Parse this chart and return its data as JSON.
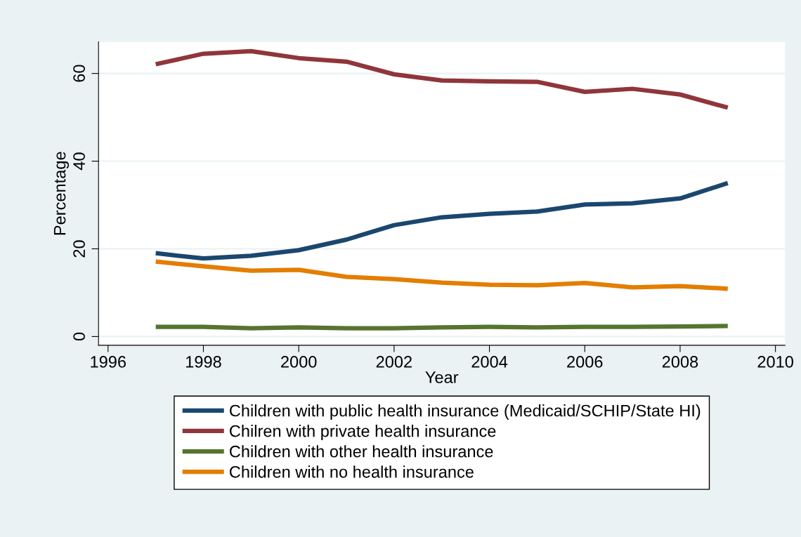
{
  "chart_data": {
    "type": "line",
    "xlabel": "Year",
    "ylabel": "Percentage",
    "x": [
      1997,
      1998,
      1999,
      2000,
      2001,
      2002,
      2003,
      2004,
      2005,
      2006,
      2007,
      2008,
      2009
    ],
    "series": [
      {
        "name": "Children with public health insurance (Medicaid/SCHIP/State HI)",
        "color": "#1a476f",
        "values": [
          19.0,
          17.8,
          18.4,
          19.7,
          22.1,
          25.4,
          27.2,
          28.0,
          28.5,
          30.1,
          30.4,
          31.5,
          35.0
        ]
      },
      {
        "name": "Chilren with private health insurance",
        "color": "#90353b",
        "values": [
          62.1,
          64.5,
          65.1,
          63.5,
          62.7,
          59.8,
          58.4,
          58.2,
          58.1,
          55.8,
          56.5,
          55.2,
          52.2
        ]
      },
      {
        "name": "Children with other health insurance",
        "color": "#55752f",
        "values": [
          2.2,
          2.2,
          1.9,
          2.1,
          1.9,
          1.9,
          2.1,
          2.2,
          2.1,
          2.2,
          2.2,
          2.3,
          2.4
        ]
      },
      {
        "name": "Children with no health insurance",
        "color": "#e37e00",
        "values": [
          17.1,
          16.0,
          15.0,
          15.2,
          13.6,
          13.1,
          12.3,
          11.8,
          11.7,
          12.2,
          11.2,
          11.5,
          10.9
        ]
      }
    ],
    "xlim": [
      1995.8,
      2010.2
    ],
    "xticks": [
      1996,
      1998,
      2000,
      2002,
      2004,
      2006,
      2008,
      2010
    ],
    "ylim": [
      -2,
      67.2
    ],
    "yticks": [
      0,
      20,
      40,
      60
    ],
    "grid": "y",
    "legend": "bottom",
    "marker": "none",
    "line_style": "solid"
  }
}
